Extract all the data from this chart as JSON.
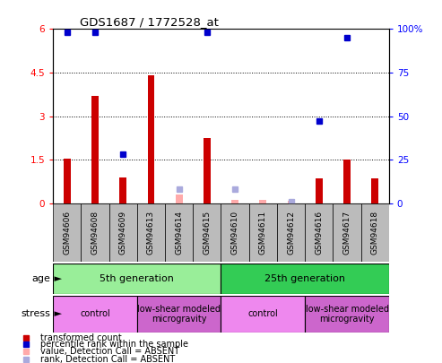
{
  "title": "GDS1687 / 1772528_at",
  "samples": [
    "GSM94606",
    "GSM94608",
    "GSM94609",
    "GSM94613",
    "GSM94614",
    "GSM94615",
    "GSM94610",
    "GSM94611",
    "GSM94612",
    "GSM94616",
    "GSM94617",
    "GSM94618"
  ],
  "transformed_count": [
    1.55,
    3.7,
    0.9,
    4.4,
    0.3,
    2.25,
    0.12,
    0.12,
    0.08,
    0.85,
    1.5,
    0.85
  ],
  "percentile_rank": [
    98,
    98,
    28,
    null,
    8,
    98,
    8,
    null,
    null,
    47,
    95,
    null
  ],
  "absent_value": [
    null,
    null,
    null,
    null,
    0.3,
    null,
    0.12,
    0.12,
    0.08,
    null,
    null,
    null
  ],
  "absent_rank_val": [
    null,
    null,
    null,
    null,
    null,
    null,
    null,
    null,
    1,
    null,
    null,
    null
  ],
  "detection_absent": [
    false,
    false,
    false,
    false,
    true,
    false,
    true,
    true,
    true,
    false,
    false,
    false
  ],
  "ylim_left": [
    0,
    6
  ],
  "ylim_right": [
    0,
    100
  ],
  "yticks_left": [
    0,
    1.5,
    3.0,
    4.5,
    6.0
  ],
  "yticks_right": [
    0,
    25,
    50,
    75,
    100
  ],
  "ytick_labels_left": [
    "0",
    "1.5",
    "3",
    "4.5",
    "6"
  ],
  "ytick_labels_right": [
    "0",
    "25",
    "50",
    "75",
    "100%"
  ],
  "age_groups": [
    {
      "label": "5th generation",
      "start": 0,
      "end": 6,
      "color": "#99EE99"
    },
    {
      "label": "25th generation",
      "start": 6,
      "end": 12,
      "color": "#33CC55"
    }
  ],
  "stress_groups": [
    {
      "label": "control",
      "start": 0,
      "end": 3,
      "color": "#EE88EE"
    },
    {
      "label": "low-shear modeled\nmicrogravity",
      "start": 3,
      "end": 6,
      "color": "#CC66CC"
    },
    {
      "label": "control",
      "start": 6,
      "end": 9,
      "color": "#EE88EE"
    },
    {
      "label": "low-shear modeled\nmicrogravity",
      "start": 9,
      "end": 12,
      "color": "#CC66CC"
    }
  ],
  "bar_color_present": "#CC0000",
  "bar_color_absent": "#FFAAAA",
  "rank_color_present": "#0000CC",
  "rank_color_absent": "#AAAADD",
  "bar_width": 0.25,
  "bg_color": "#FFFFFF",
  "label_bg_color": "#BBBBBB",
  "legend_items": [
    {
      "color": "#CC0000",
      "label": "transformed count"
    },
    {
      "color": "#0000CC",
      "label": "percentile rank within the sample"
    },
    {
      "color": "#FFAAAA",
      "label": "value, Detection Call = ABSENT"
    },
    {
      "color": "#AAAADD",
      "label": "rank, Detection Call = ABSENT"
    }
  ]
}
